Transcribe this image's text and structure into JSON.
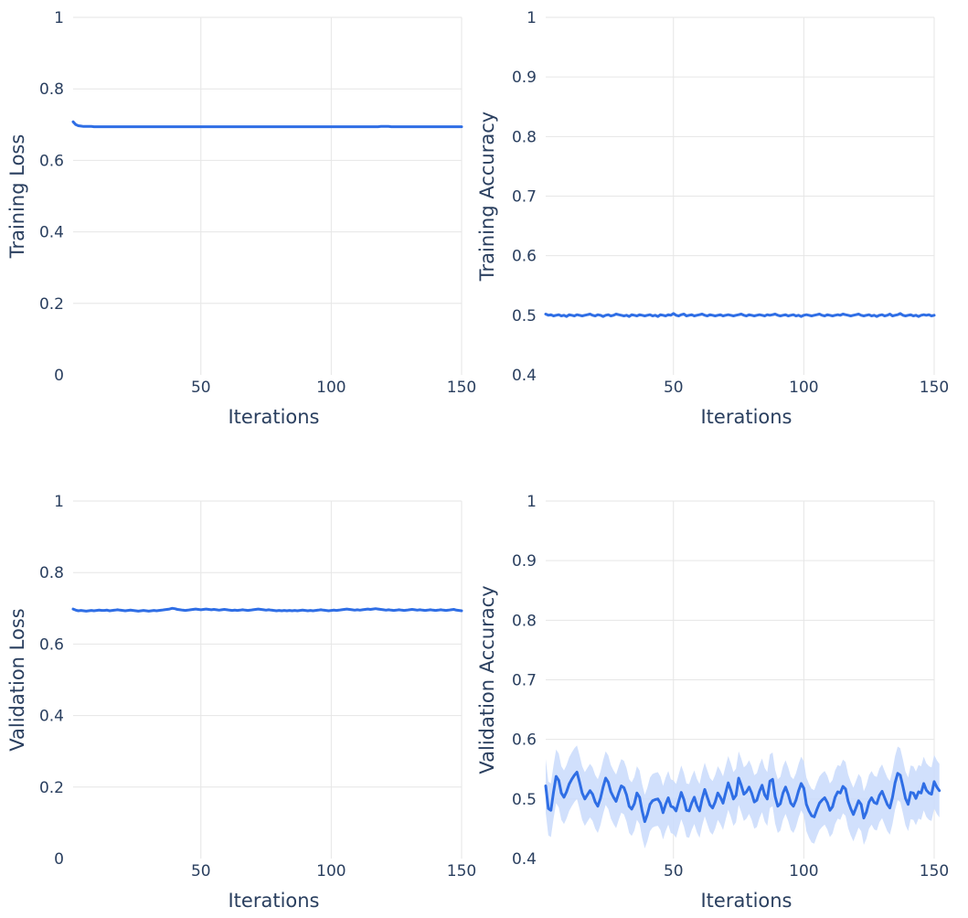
{
  "colors": {
    "line": "#2f6ee5",
    "band": "#c9dbfb",
    "grid": "#e6e6e6",
    "text": "#2a3f5f"
  },
  "chart_data": [
    {
      "type": "line",
      "xlabel": "Iterations",
      "ylabel": "Training Loss",
      "xlim": [
        1,
        150
      ],
      "ylim": [
        0,
        1
      ],
      "xticks": [
        50,
        100,
        150
      ],
      "yticks": [
        0,
        0.2,
        0.4,
        0.6,
        0.8,
        1
      ],
      "ytick_labels": [
        "0",
        "0.2",
        "0.4",
        "0.6",
        "0.8",
        "1"
      ],
      "grid": true,
      "legend": "none",
      "series": [
        {
          "x_start": 1,
          "x_step": 1,
          "y": [
            0.708,
            0.7,
            0.697,
            0.696,
            0.695,
            0.695,
            0.695,
            0.695,
            0.694,
            0.694,
            0.694,
            0.694,
            0.694,
            0.694,
            0.694,
            0.694,
            0.694,
            0.694,
            0.694,
            0.694,
            0.694,
            0.694,
            0.694,
            0.694,
            0.694,
            0.694,
            0.694,
            0.694,
            0.694,
            0.694,
            0.694,
            0.694,
            0.694,
            0.694,
            0.694,
            0.694,
            0.694,
            0.694,
            0.694,
            0.694,
            0.694,
            0.694,
            0.694,
            0.694,
            0.694,
            0.694,
            0.694,
            0.694,
            0.694,
            0.694,
            0.694,
            0.694,
            0.694,
            0.694,
            0.694,
            0.694,
            0.694,
            0.694,
            0.694,
            0.694,
            0.694,
            0.694,
            0.694,
            0.694,
            0.694,
            0.694,
            0.694,
            0.694,
            0.694,
            0.694,
            0.694,
            0.694,
            0.694,
            0.694,
            0.694,
            0.694,
            0.694,
            0.694,
            0.694,
            0.694,
            0.694,
            0.694,
            0.694,
            0.694,
            0.694,
            0.694,
            0.694,
            0.694,
            0.694,
            0.694,
            0.694,
            0.694,
            0.694,
            0.694,
            0.694,
            0.694,
            0.694,
            0.694,
            0.694,
            0.694,
            0.694,
            0.694,
            0.694,
            0.694,
            0.694,
            0.694,
            0.694,
            0.694,
            0.694,
            0.694,
            0.694,
            0.694,
            0.694,
            0.694,
            0.694,
            0.694,
            0.694,
            0.694,
            0.695,
            0.695,
            0.695,
            0.695,
            0.694,
            0.694,
            0.694,
            0.694,
            0.694,
            0.694,
            0.694,
            0.694,
            0.694,
            0.694,
            0.694,
            0.694,
            0.694,
            0.694,
            0.694,
            0.694,
            0.694,
            0.694,
            0.694,
            0.694,
            0.694,
            0.694,
            0.694,
            0.694,
            0.694,
            0.694,
            0.694,
            0.694
          ]
        }
      ]
    },
    {
      "type": "line",
      "xlabel": "Iterations",
      "ylabel": "Training Accuracy",
      "xlim": [
        1,
        150
      ],
      "ylim": [
        0.4,
        1
      ],
      "xticks": [
        50,
        100,
        150
      ],
      "yticks": [
        0.4,
        0.5,
        0.6,
        0.7,
        0.8,
        0.9,
        1
      ],
      "ytick_labels": [
        "0.4",
        "0.5",
        "0.6",
        "0.7",
        "0.8",
        "0.9",
        "1"
      ],
      "grid": true,
      "legend": "none",
      "series": [
        {
          "x_start": 1,
          "x_step": 1,
          "y": [
            0.502,
            0.5,
            0.501,
            0.499,
            0.5,
            0.501,
            0.499,
            0.5,
            0.498,
            0.501,
            0.5,
            0.499,
            0.501,
            0.5,
            0.499,
            0.5,
            0.501,
            0.502,
            0.5,
            0.499,
            0.501,
            0.5,
            0.498,
            0.5,
            0.501,
            0.499,
            0.5,
            0.502,
            0.501,
            0.5,
            0.499,
            0.5,
            0.498,
            0.501,
            0.5,
            0.499,
            0.501,
            0.5,
            0.499,
            0.5,
            0.501,
            0.499,
            0.5,
            0.498,
            0.501,
            0.5,
            0.499,
            0.501,
            0.5,
            0.503,
            0.5,
            0.499,
            0.501,
            0.502,
            0.499,
            0.5,
            0.501,
            0.499,
            0.5,
            0.501,
            0.502,
            0.5,
            0.499,
            0.501,
            0.5,
            0.499,
            0.5,
            0.501,
            0.499,
            0.5,
            0.501,
            0.5,
            0.499,
            0.5,
            0.501,
            0.502,
            0.5,
            0.499,
            0.501,
            0.5,
            0.499,
            0.5,
            0.501,
            0.5,
            0.499,
            0.501,
            0.5,
            0.501,
            0.502,
            0.5,
            0.499,
            0.5,
            0.501,
            0.499,
            0.5,
            0.501,
            0.499,
            0.5,
            0.498,
            0.5,
            0.501,
            0.5,
            0.499,
            0.5,
            0.501,
            0.502,
            0.5,
            0.499,
            0.501,
            0.5,
            0.499,
            0.5,
            0.501,
            0.5,
            0.502,
            0.501,
            0.5,
            0.499,
            0.5,
            0.501,
            0.502,
            0.5,
            0.499,
            0.5,
            0.501,
            0.499,
            0.5,
            0.498,
            0.5,
            0.501,
            0.499,
            0.5,
            0.502,
            0.499,
            0.5,
            0.501,
            0.503,
            0.5,
            0.499,
            0.5,
            0.501,
            0.499,
            0.5,
            0.498,
            0.5,
            0.501,
            0.5,
            0.501,
            0.499,
            0.5
          ]
        }
      ]
    },
    {
      "type": "line",
      "xlabel": "Iterations",
      "ylabel": "Validation Loss",
      "xlim": [
        1,
        150
      ],
      "ylim": [
        0,
        1
      ],
      "xticks": [
        50,
        100,
        150
      ],
      "yticks": [
        0,
        0.2,
        0.4,
        0.6,
        0.8,
        1
      ],
      "ytick_labels": [
        "0",
        "0.2",
        "0.4",
        "0.6",
        "0.8",
        "1"
      ],
      "grid": true,
      "legend": "none",
      "series": [
        {
          "x_start": 1,
          "x_step": 1,
          "y": [
            0.698,
            0.695,
            0.693,
            0.694,
            0.693,
            0.692,
            0.693,
            0.694,
            0.693,
            0.694,
            0.695,
            0.694,
            0.694,
            0.695,
            0.693,
            0.694,
            0.695,
            0.696,
            0.695,
            0.694,
            0.693,
            0.694,
            0.695,
            0.694,
            0.693,
            0.692,
            0.693,
            0.694,
            0.693,
            0.692,
            0.693,
            0.694,
            0.693,
            0.694,
            0.695,
            0.696,
            0.697,
            0.698,
            0.7,
            0.699,
            0.697,
            0.696,
            0.695,
            0.694,
            0.695,
            0.696,
            0.697,
            0.698,
            0.697,
            0.696,
            0.697,
            0.698,
            0.697,
            0.696,
            0.697,
            0.696,
            0.695,
            0.696,
            0.697,
            0.696,
            0.695,
            0.694,
            0.695,
            0.694,
            0.695,
            0.696,
            0.695,
            0.694,
            0.695,
            0.696,
            0.697,
            0.698,
            0.697,
            0.696,
            0.695,
            0.696,
            0.695,
            0.694,
            0.693,
            0.694,
            0.693,
            0.694,
            0.693,
            0.694,
            0.693,
            0.694,
            0.693,
            0.694,
            0.695,
            0.694,
            0.693,
            0.694,
            0.693,
            0.694,
            0.695,
            0.696,
            0.695,
            0.694,
            0.693,
            0.694,
            0.695,
            0.694,
            0.695,
            0.696,
            0.697,
            0.698,
            0.697,
            0.696,
            0.695,
            0.696,
            0.695,
            0.696,
            0.697,
            0.698,
            0.697,
            0.698,
            0.699,
            0.698,
            0.697,
            0.696,
            0.695,
            0.696,
            0.695,
            0.694,
            0.695,
            0.696,
            0.695,
            0.694,
            0.695,
            0.696,
            0.697,
            0.696,
            0.695,
            0.696,
            0.695,
            0.694,
            0.695,
            0.696,
            0.695,
            0.694,
            0.695,
            0.696,
            0.695,
            0.694,
            0.695,
            0.696,
            0.697,
            0.695,
            0.694,
            0.693
          ]
        }
      ]
    },
    {
      "type": "line",
      "xlabel": "Iterations",
      "ylabel": "Validation Accuracy",
      "xlim": [
        1,
        150
      ],
      "ylim": [
        0.4,
        1
      ],
      "xticks": [
        50,
        100,
        150
      ],
      "yticks": [
        0.4,
        0.5,
        0.6,
        0.7,
        0.8,
        0.9,
        1
      ],
      "ytick_labels": [
        "0.4",
        "0.5",
        "0.6",
        "0.7",
        "0.8",
        "0.9",
        "1"
      ],
      "grid": true,
      "legend": "none",
      "band_halfwidth": 0.045,
      "series": [
        {
          "x_start": 1,
          "x_step": 1,
          "y": [
            0.522,
            0.484,
            0.481,
            0.512,
            0.538,
            0.531,
            0.51,
            0.503,
            0.512,
            0.525,
            0.533,
            0.54,
            0.545,
            0.528,
            0.51,
            0.5,
            0.507,
            0.514,
            0.508,
            0.495,
            0.488,
            0.501,
            0.52,
            0.535,
            0.528,
            0.512,
            0.503,
            0.496,
            0.51,
            0.522,
            0.519,
            0.507,
            0.488,
            0.483,
            0.492,
            0.51,
            0.503,
            0.48,
            0.462,
            0.474,
            0.491,
            0.497,
            0.499,
            0.5,
            0.493,
            0.477,
            0.491,
            0.502,
            0.488,
            0.486,
            0.48,
            0.496,
            0.511,
            0.499,
            0.481,
            0.48,
            0.493,
            0.503,
            0.489,
            0.48,
            0.5,
            0.516,
            0.503,
            0.49,
            0.485,
            0.495,
            0.51,
            0.503,
            0.493,
            0.51,
            0.527,
            0.515,
            0.5,
            0.506,
            0.535,
            0.523,
            0.508,
            0.512,
            0.52,
            0.51,
            0.495,
            0.498,
            0.513,
            0.523,
            0.507,
            0.5,
            0.53,
            0.533,
            0.504,
            0.488,
            0.492,
            0.51,
            0.52,
            0.508,
            0.493,
            0.488,
            0.498,
            0.514,
            0.526,
            0.518,
            0.491,
            0.48,
            0.472,
            0.47,
            0.482,
            0.493,
            0.498,
            0.502,
            0.494,
            0.481,
            0.487,
            0.503,
            0.512,
            0.51,
            0.521,
            0.517,
            0.496,
            0.484,
            0.474,
            0.485,
            0.497,
            0.491,
            0.468,
            0.478,
            0.495,
            0.502,
            0.494,
            0.492,
            0.506,
            0.513,
            0.502,
            0.491,
            0.485,
            0.503,
            0.527,
            0.543,
            0.54,
            0.521,
            0.501,
            0.491,
            0.511,
            0.51,
            0.501,
            0.512,
            0.51,
            0.526,
            0.515,
            0.51,
            0.508,
            0.529,
            0.52,
            0.514
          ]
        }
      ]
    }
  ]
}
